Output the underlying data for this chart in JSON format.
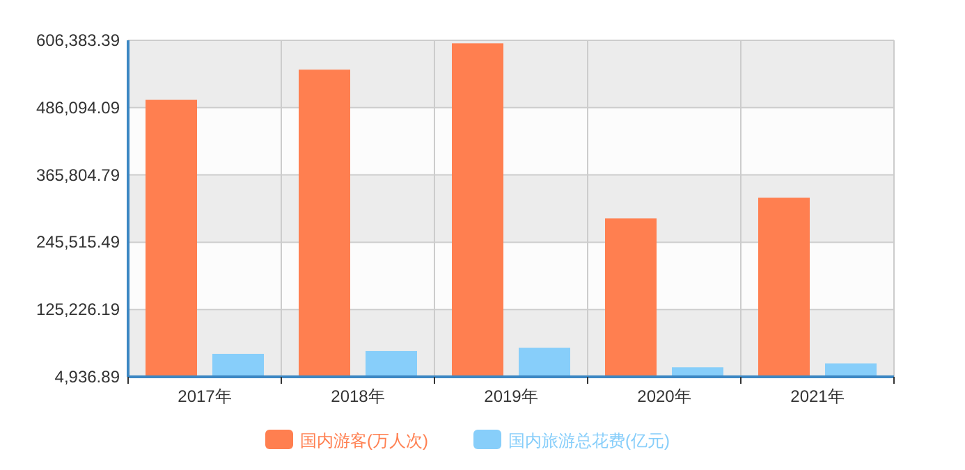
{
  "chart_data": {
    "type": "bar",
    "categories": [
      "2017年",
      "2018年",
      "2019年",
      "2020年",
      "2021年"
    ],
    "series": [
      {
        "name": "国内游客(万人次)",
        "color": "#ff7f50",
        "values": [
          500000,
          554000,
          601000,
          288000,
          325000
        ]
      },
      {
        "name": "国内旅游总花费(亿元)",
        "color": "#87cefa",
        "values": [
          46000,
          51000,
          57000,
          22000,
          29000
        ]
      }
    ],
    "ylim": [
      4936.89,
      606383.39
    ],
    "yticks": [
      {
        "value": 4936.89,
        "label": "4,936.89"
      },
      {
        "value": 125226.19,
        "label": "125,226.19"
      },
      {
        "value": 245515.49,
        "label": "245,515.49"
      },
      {
        "value": 365804.79,
        "label": "365,804.79"
      },
      {
        "value": 486094.09,
        "label": "486,094.09"
      },
      {
        "value": 606383.39,
        "label": "606,383.39"
      }
    ],
    "grid": true,
    "legend": "bottom"
  }
}
